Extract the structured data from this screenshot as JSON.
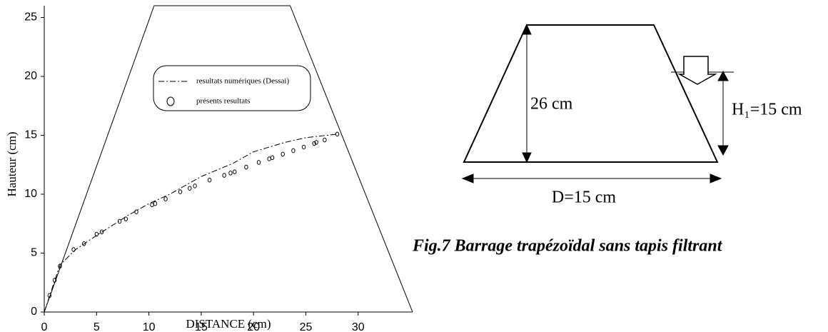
{
  "chart_data": {
    "type": "line",
    "xlabel": "DISTANCE (cm)",
    "ylabel": "Hauteur (cm)",
    "xlim": [
      0,
      35.2
    ],
    "ylim": [
      0,
      26
    ],
    "xticks": [
      0,
      5,
      10,
      15,
      20,
      25,
      30
    ],
    "yticks": [
      0,
      5,
      10,
      15,
      20,
      25
    ],
    "legend": "top-center",
    "series": [
      {
        "color": "#000000",
        "dash": "solid",
        "x": [
          0,
          10.5,
          23.5,
          35.2
        ],
        "values": [
          0,
          26,
          26,
          0
        ]
      },
      {
        "name": "resultats numériques (Dessai)",
        "color": "#000000",
        "dash": "dashdot",
        "x": [
          0,
          1.5,
          3,
          5,
          8,
          10,
          12,
          15,
          18,
          20,
          23,
          25,
          28
        ],
        "values": [
          0,
          4,
          5.3,
          6.5,
          8.2,
          9.2,
          10,
          11.5,
          12.6,
          13.6,
          14.4,
          14.8,
          15.1
        ]
      },
      {
        "name": "présents resultats",
        "color": "#000000",
        "marker": "circle",
        "x": [
          0.5,
          1,
          1.5,
          2.8,
          3.8,
          5,
          5.5,
          7.2,
          7.8,
          8.8,
          10.3,
          10.6,
          11.6,
          13,
          13.9,
          14.4,
          15.8,
          17.2,
          17.8,
          18.2,
          19.3,
          20.5,
          21.5,
          21.8,
          22.8,
          23.8,
          24.8,
          25.8,
          26,
          26.8,
          28
        ],
        "values": [
          1.4,
          2.7,
          3.9,
          5.3,
          5.8,
          6.6,
          6.8,
          7.7,
          7.9,
          8.5,
          9.1,
          9.2,
          9.6,
          10.2,
          10.5,
          10.7,
          11.2,
          11.6,
          11.8,
          11.9,
          12.3,
          12.7,
          13,
          13.1,
          13.4,
          13.7,
          14,
          14.3,
          14.4,
          14.6,
          15.1
        ]
      }
    ]
  },
  "diagram": {
    "height_label": "26 cm",
    "water_label": "H₁=15 cm",
    "base_label": "D=15 cm",
    "caption": "Fig.7 Barrage trapézoïdal sans tapis filtrant"
  }
}
